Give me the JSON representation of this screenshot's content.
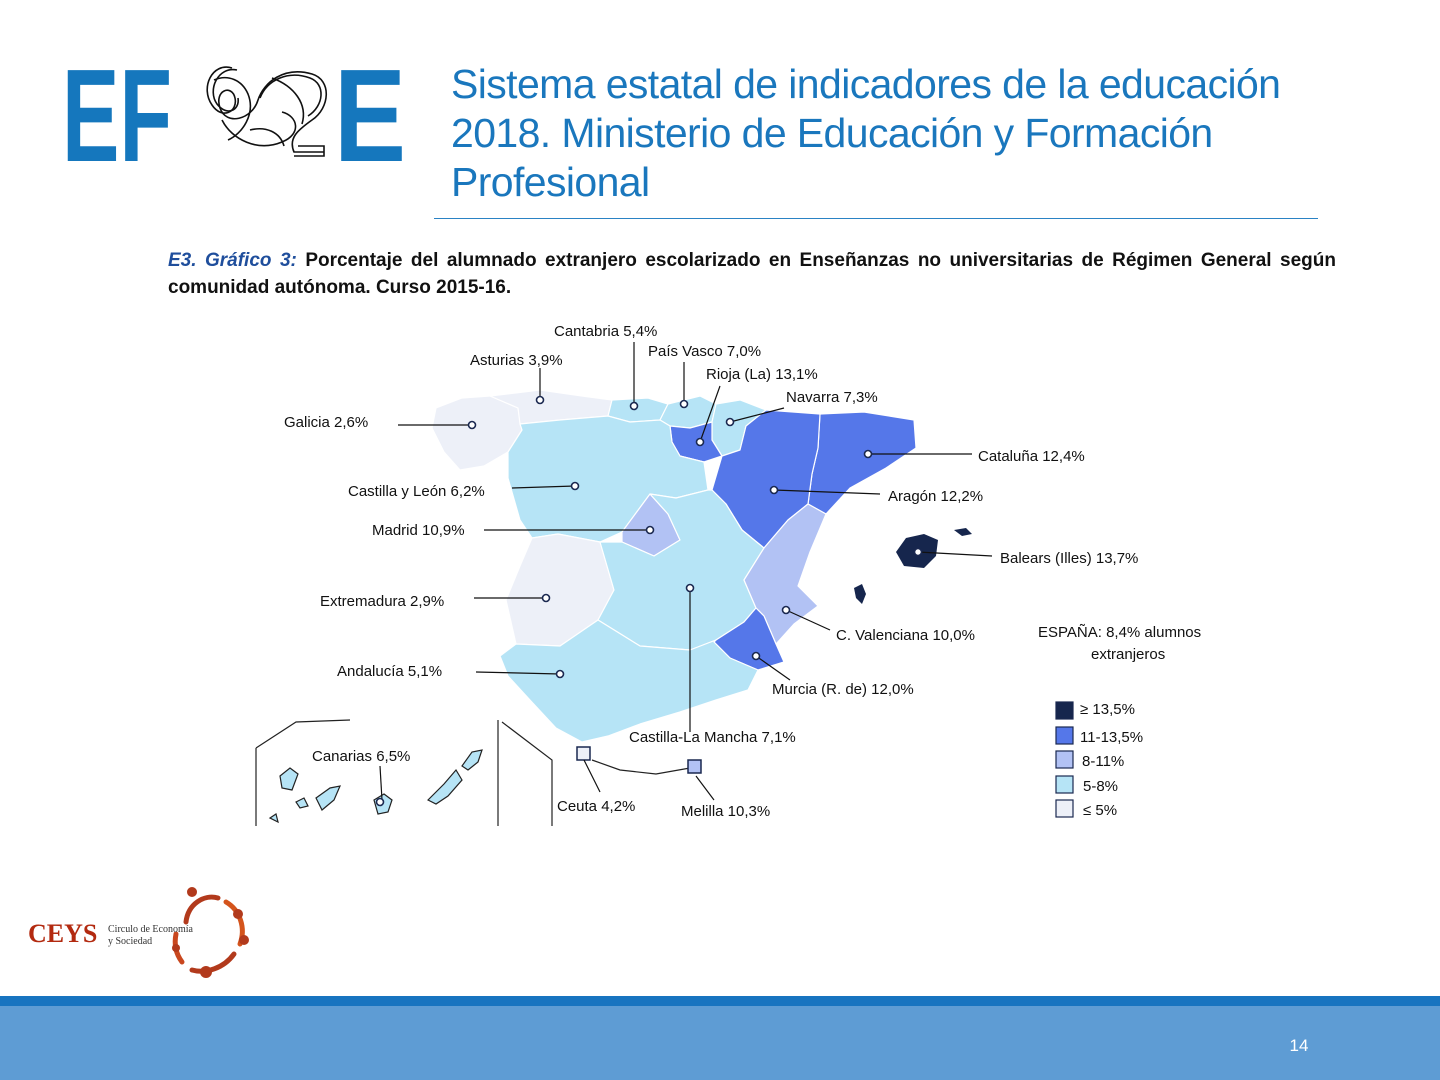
{
  "header": {
    "logo_text": "EFSE",
    "title": "Sistema estatal de indicadores de la educación 2018. Ministerio de Educación y Formación Profesional"
  },
  "chart_caption": {
    "ref": "E3. Gráfico 3:",
    "text": "Porcentaje del alumnado extranjero escolarizado en Enseñanzas no universitarias de Régimen General según comunidad autónoma. Curso 2015-16."
  },
  "map": {
    "national_note": {
      "line1": "ESPAÑA: 8,4% alumnos",
      "line2": "extranjeros"
    },
    "legend": [
      {
        "label": "≥ 13,5%",
        "color": "#16264d"
      },
      {
        "label": "11-13,5%",
        "color": "#5577e9"
      },
      {
        "label": "8-11%",
        "color": "#b2c2f4"
      },
      {
        "label": "5-8%",
        "color": "#b6e4f6"
      },
      {
        "label": "≤ 5%",
        "color": "#edf0f8"
      }
    ],
    "regions": [
      {
        "id": "galicia",
        "label": "Galicia 2,6%",
        "value": 2.6,
        "color": "#edf0f8"
      },
      {
        "id": "asturias",
        "label": "Asturias 3,9%",
        "value": 3.9,
        "color": "#edf0f8"
      },
      {
        "id": "cantabria",
        "label": "Cantabria 5,4%",
        "value": 5.4,
        "color": "#b6e4f6"
      },
      {
        "id": "pais-vasco",
        "label": "País Vasco 7,0%",
        "value": 7.0,
        "color": "#b6e4f6"
      },
      {
        "id": "rioja",
        "label": "Rioja (La) 13,1%",
        "value": 13.1,
        "color": "#5577e9"
      },
      {
        "id": "navarra",
        "label": "Navarra 7,3%",
        "value": 7.3,
        "color": "#b6e4f6"
      },
      {
        "id": "cataluna",
        "label": "Cataluña 12,4%",
        "value": 12.4,
        "color": "#5577e9"
      },
      {
        "id": "aragon",
        "label": "Aragón 12,2%",
        "value": 12.2,
        "color": "#5577e9"
      },
      {
        "id": "baleares",
        "label": "Balears (Illes)  13,7%",
        "value": 13.7,
        "color": "#16264d"
      },
      {
        "id": "castilla-leon",
        "label": "Castilla y León 6,2%",
        "value": 6.2,
        "color": "#b6e4f6"
      },
      {
        "id": "madrid",
        "label": "Madrid 10,9%",
        "value": 10.9,
        "color": "#b2c2f4"
      },
      {
        "id": "extremadura",
        "label": "Extremadura 2,9%",
        "value": 2.9,
        "color": "#edf0f8"
      },
      {
        "id": "valenciana",
        "label": "C. Valenciana 10,0%",
        "value": 10.0,
        "color": "#b2c2f4"
      },
      {
        "id": "castilla-la-mancha",
        "label": "Castilla-La Mancha  7,1%",
        "value": 7.1,
        "color": "#b6e4f6"
      },
      {
        "id": "murcia",
        "label": "Murcia (R. de) 12,0%",
        "value": 12.0,
        "color": "#5577e9"
      },
      {
        "id": "andalucia",
        "label": "Andalucía 5,1%",
        "value": 5.1,
        "color": "#b6e4f6"
      },
      {
        "id": "canarias",
        "label": "Canarias 6,5%",
        "value": 6.5,
        "color": "#b6e4f6"
      },
      {
        "id": "ceuta",
        "label": "Ceuta 4,2%",
        "value": 4.2,
        "color": "#edf0f8"
      },
      {
        "id": "melilla",
        "label": "Melilla 10,3%",
        "value": 10.3,
        "color": "#b2c2f4"
      }
    ]
  },
  "footer": {
    "ceys_name": "CEYS",
    "ceys_line1": "Circulo de Economía",
    "ceys_line2": "y Sociedad",
    "page_number": "14"
  }
}
